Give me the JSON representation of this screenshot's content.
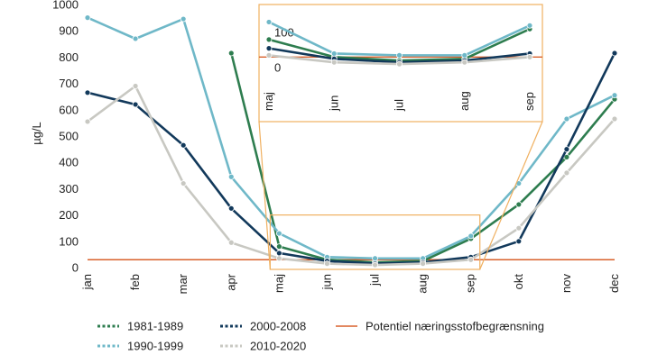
{
  "chart_data": {
    "type": "line",
    "ylabel": "µg/L",
    "ylim": [
      0,
      1000
    ],
    "yticks": [
      0,
      100,
      200,
      300,
      400,
      500,
      600,
      700,
      800,
      900,
      1000
    ],
    "categories": [
      "jan",
      "feb",
      "mar",
      "apr",
      "maj",
      "jun",
      "jul",
      "aug",
      "sep",
      "okt",
      "nov",
      "dec"
    ],
    "threshold": {
      "name": "Potentiel næringsstofbegrænsning",
      "value": 30,
      "color": "#d9602b"
    },
    "series": [
      {
        "name": "1981-1989",
        "color": "#2e7d4f",
        "values": [
          null,
          null,
          null,
          815,
          80,
          30,
          20,
          25,
          110,
          240,
          420,
          640
        ]
      },
      {
        "name": "1990-1999",
        "color": "#6fb8c8",
        "values": [
          950,
          870,
          945,
          345,
          130,
          40,
          35,
          35,
          120,
          320,
          565,
          655
        ]
      },
      {
        "name": "2000-2008",
        "color": "#12395b",
        "values": [
          665,
          620,
          465,
          225,
          55,
          25,
          15,
          20,
          40,
          100,
          450,
          815
        ]
      },
      {
        "name": "2010-2020",
        "color": "#c8c8c2",
        "values": [
          555,
          690,
          320,
          95,
          35,
          15,
          10,
          15,
          30,
          150,
          360,
          565
        ]
      }
    ],
    "inset": {
      "categories": [
        "maj",
        "jun",
        "jul",
        "aug",
        "sep"
      ],
      "yticks": [
        0,
        100
      ],
      "ylim": [
        0,
        180
      ]
    },
    "legend": {
      "items": [
        {
          "label": "1981-1989",
          "series": 0
        },
        {
          "label": "2000-2008",
          "series": 2
        },
        {
          "label": "Potentiel næringsstofbegrænsning",
          "threshold": true
        },
        {
          "label": "1990-1999",
          "series": 1
        },
        {
          "label": "2010-2020",
          "series": 3
        }
      ]
    },
    "zoom_color": "#f0b060"
  }
}
